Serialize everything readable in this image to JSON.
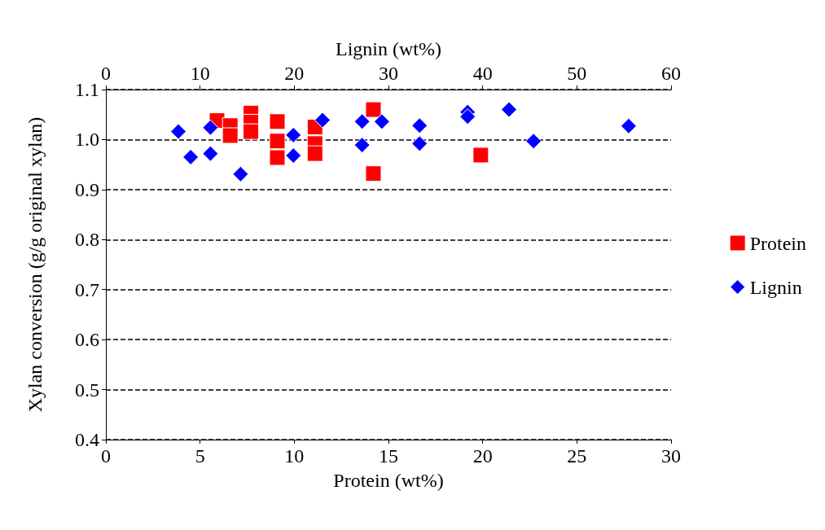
{
  "chart_data": {
    "type": "scatter",
    "xlabel": "Protein (wt%)",
    "x2label": "Lignin (wt%)",
    "ylabel": "Xylan conversion (g/g original xylan)",
    "xlim": [
      0,
      30
    ],
    "xticks": [
      0,
      5,
      10,
      15,
      20,
      25,
      30
    ],
    "x2lim": [
      0,
      60
    ],
    "x2ticks": [
      0,
      10,
      20,
      30,
      40,
      50,
      60
    ],
    "ylim": [
      0.4,
      1.1
    ],
    "yticks": [
      0.4,
      0.5,
      0.6,
      0.7,
      0.8,
      0.9,
      {
        "value": 1,
        "label": "1.0"
      },
      1.1
    ],
    "grid": "y",
    "legend": "right",
    "series": [
      {
        "name": "Protein",
        "color": "#ff0000",
        "marker": "square",
        "x": [
          5.9,
          6.6,
          6.6,
          7.7,
          7.7,
          7.7,
          9.1,
          9.1,
          9.1,
          11.1,
          11.1,
          11.1,
          14.2,
          14.2,
          19.9
        ],
        "values": [
          1.038,
          1.028,
          1.008,
          1.053,
          1.035,
          1.016,
          1.036,
          0.997,
          0.964,
          1.025,
          0.992,
          0.972,
          1.06,
          0.932,
          0.969
        ]
      },
      {
        "name": "Lignin",
        "color": "#0000ff",
        "marker": "diamond",
        "axis": "x2",
        "x": [
          7.7,
          9.0,
          11.1,
          11.1,
          14.3,
          19.9,
          19.9,
          23.0,
          27.2,
          27.2,
          29.3,
          33.3,
          33.3,
          38.4,
          38.4,
          42.8,
          45.4,
          55.5
        ],
        "values": [
          1.016,
          0.965,
          1.024,
          0.972,
          0.931,
          1.009,
          0.968,
          1.039,
          1.036,
          0.989,
          1.036,
          1.028,
          0.992,
          1.055,
          1.046,
          1.06,
          0.997,
          1.027
        ]
      }
    ]
  }
}
